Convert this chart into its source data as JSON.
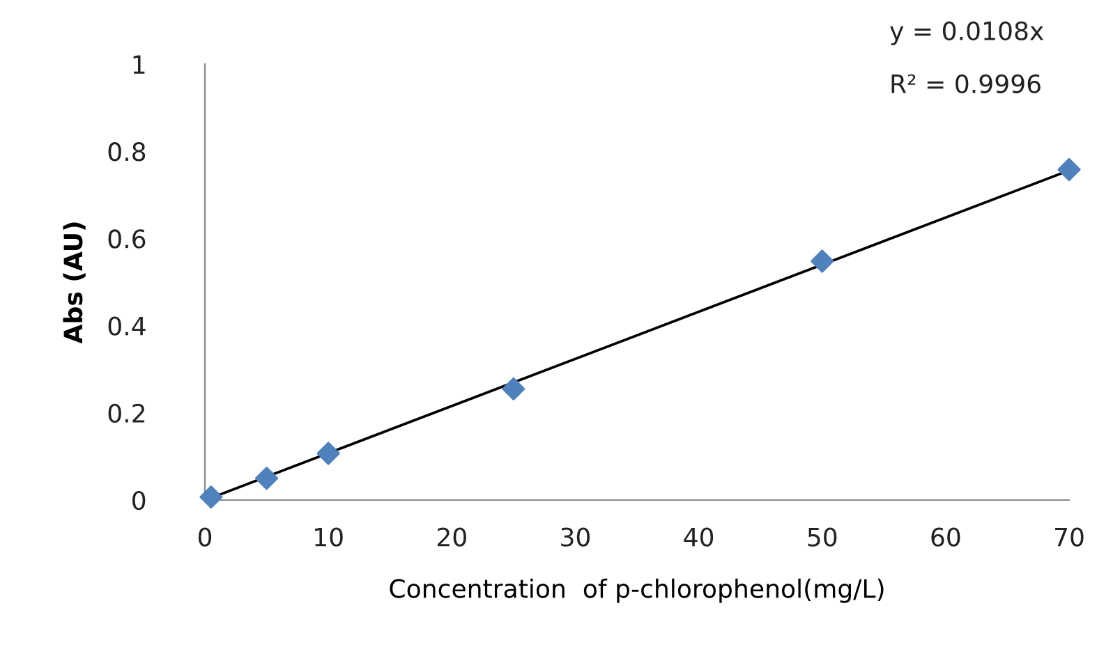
{
  "chart_data": {
    "type": "scatter",
    "xlabel": "Concentration  of p-chlorophenol(mg/L)",
    "ylabel": "Abs (AU)",
    "series": [
      {
        "color": "#4f81bd",
        "marker": "diamond",
        "x": [
          0.5,
          5,
          10,
          25,
          50,
          70
        ],
        "values": [
          0.007,
          0.05,
          0.107,
          0.255,
          0.548,
          0.758
        ]
      },
      {
        "type": "line",
        "color": "#000000",
        "marker": "none",
        "x": [
          0.5,
          70
        ],
        "values": [
          0.005,
          0.756
        ]
      }
    ],
    "xlim": [
      0,
      70
    ],
    "xticks": [
      0,
      10,
      20,
      30,
      40,
      50,
      60,
      70
    ],
    "ylim": [
      0,
      1
    ],
    "yticks": [
      0,
      0.2,
      0.4,
      0.6,
      0.8,
      1
    ],
    "grid": false,
    "legend": false,
    "annotations": [
      "y = 0.0108x",
      "R² = 0.9996"
    ]
  }
}
